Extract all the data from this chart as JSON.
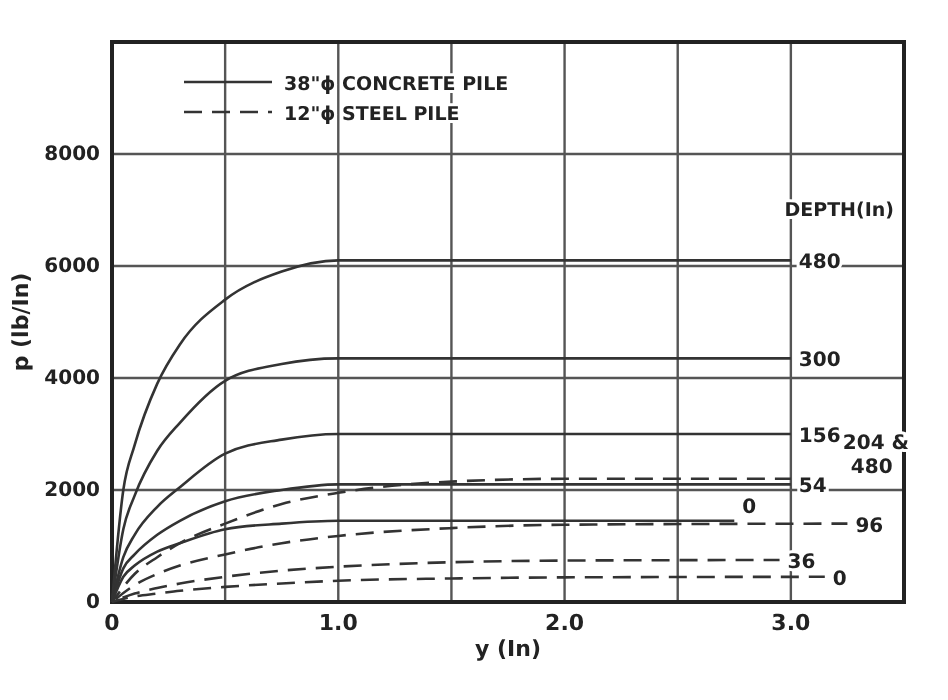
{
  "chart_data": {
    "type": "line",
    "xlabel": "y (In)",
    "ylabel": "p (lb/In)",
    "xlim": [
      0,
      3.5
    ],
    "ylim": [
      0,
      10000
    ],
    "xticks": [
      {
        "value": 0,
        "label": "0"
      },
      {
        "value": 0.5,
        "label": null
      },
      {
        "value": 1,
        "label": "1.0"
      },
      {
        "value": 1.5,
        "label": null
      },
      {
        "value": 2,
        "label": "2.0"
      },
      {
        "value": 2.5,
        "label": null
      },
      {
        "value": 3,
        "label": "3.0"
      }
    ],
    "yticks": [
      0,
      2000,
      4000,
      6000,
      8000
    ],
    "grid": true,
    "marker": "none",
    "annotations": [
      "38\"ϕ CONCRETE PILE",
      "12\"ϕ STEEL PILE",
      "DEPTH(In)",
      {
        "text": "480",
        "x": 3.0,
        "y": 6100
      },
      {
        "text": "300",
        "x": 3.0,
        "y": 4350
      },
      {
        "text": "156",
        "x": 3.0,
        "y": 3000
      },
      {
        "text": "54",
        "x": 3.0,
        "y": 2100
      },
      {
        "text": "0",
        "x": 2.75,
        "y": 1450
      },
      {
        "text": "204 & 480",
        "x": 3.0,
        "y": 2200
      },
      {
        "text": "96",
        "x": 3.25,
        "y": 1400
      },
      {
        "text": "36",
        "x": 2.95,
        "y": 750
      },
      {
        "text": "0",
        "x": 3.15,
        "y": 450
      }
    ],
    "series": [
      {
        "color": "#333333",
        "line_style": "solid",
        "x": [
          0,
          0.05,
          0.1,
          0.2,
          0.3,
          0.5,
          0.75,
          1.0,
          3.0
        ],
        "values": [
          0,
          2000,
          2800,
          3900,
          4600,
          5400,
          5900,
          6100,
          6100
        ]
      },
      {
        "color": "#333333",
        "line_style": "solid",
        "x": [
          0,
          0.05,
          0.1,
          0.2,
          0.3,
          0.5,
          0.75,
          1.0,
          3.0
        ],
        "values": [
          0,
          1300,
          1900,
          2700,
          3200,
          3950,
          4250,
          4350,
          4350
        ]
      },
      {
        "color": "#333333",
        "line_style": "solid",
        "x": [
          0,
          0.05,
          0.1,
          0.2,
          0.3,
          0.5,
          0.75,
          1.0,
          3.0
        ],
        "values": [
          0,
          800,
          1200,
          1700,
          2050,
          2650,
          2900,
          3000,
          3000
        ]
      },
      {
        "color": "#333333",
        "line_style": "solid",
        "x": [
          0,
          0.05,
          0.1,
          0.2,
          0.3,
          0.5,
          0.75,
          1.0,
          3.0
        ],
        "values": [
          0,
          600,
          850,
          1200,
          1450,
          1800,
          2000,
          2100,
          2100
        ]
      },
      {
        "color": "#333333",
        "line_style": "solid",
        "x": [
          0,
          0.05,
          0.1,
          0.2,
          0.3,
          0.5,
          0.75,
          1.0,
          2.75
        ],
        "values": [
          0,
          450,
          650,
          900,
          1050,
          1300,
          1400,
          1450,
          1450
        ]
      },
      {
        "color": "#333333",
        "line_style": "dashed",
        "x": [
          0,
          0.1,
          0.2,
          0.3,
          0.5,
          0.75,
          1.0,
          1.5,
          2.0,
          3.0
        ],
        "values": [
          0,
          500,
          800,
          1050,
          1400,
          1750,
          1950,
          2150,
          2200,
          2200
        ]
      },
      {
        "color": "#333333",
        "line_style": "dashed",
        "x": [
          0,
          0.1,
          0.2,
          0.3,
          0.5,
          0.75,
          1.0,
          1.5,
          2.0,
          3.25
        ],
        "values": [
          0,
          300,
          500,
          650,
          850,
          1050,
          1180,
          1320,
          1380,
          1400
        ]
      },
      {
        "color": "#333333",
        "line_style": "dashed",
        "x": [
          0,
          0.1,
          0.2,
          0.3,
          0.5,
          0.75,
          1.0,
          1.5,
          2.0,
          2.95
        ],
        "values": [
          0,
          150,
          250,
          330,
          450,
          560,
          630,
          710,
          740,
          750
        ]
      },
      {
        "color": "#333333",
        "line_style": "dashed",
        "x": [
          0,
          0.1,
          0.2,
          0.3,
          0.5,
          0.75,
          1.0,
          1.5,
          2.0,
          3.15
        ],
        "values": [
          0,
          100,
          150,
          200,
          270,
          330,
          380,
          420,
          440,
          450
        ]
      }
    ]
  }
}
